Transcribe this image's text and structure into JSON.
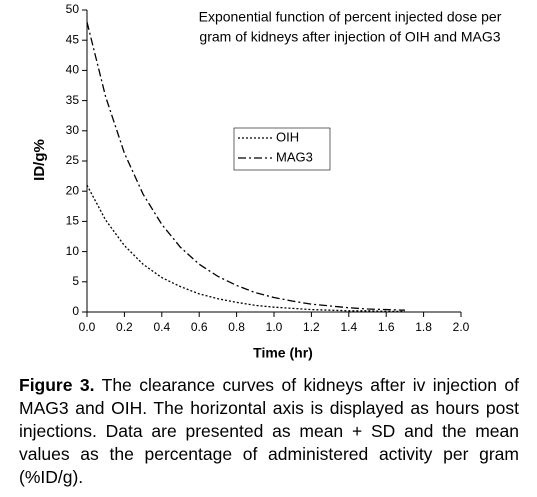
{
  "chart_data": {
    "type": "line",
    "title": [
      "Exponential function of percent injected dose per",
      "gram of kidneys after injection of OIH and MAG3"
    ],
    "x_label": "Time (hr)",
    "y_label": "ID/g%",
    "x": [
      0,
      0.1,
      0.2,
      0.3,
      0.4,
      0.5,
      0.6,
      0.7,
      0.8,
      0.9,
      1.0,
      1.1,
      1.2,
      1.3,
      1.4,
      1.5,
      1.6,
      1.7
    ],
    "series": [
      {
        "name": "OIH",
        "color": "#000000",
        "style": "dotted",
        "values": [
          21,
          15.2,
          11.0,
          7.9,
          5.7,
          4.2,
          3.0,
          2.2,
          1.6,
          1.1,
          0.8,
          0.6,
          0.4,
          0.3,
          0.2,
          0.2,
          0.1,
          0.1
        ]
      },
      {
        "name": "MAG3",
        "color": "#000000",
        "style": "dashdot",
        "values": [
          48,
          35.6,
          26.3,
          19.5,
          14.5,
          10.7,
          7.9,
          5.9,
          4.4,
          3.2,
          2.4,
          1.8,
          1.3,
          1.0,
          0.7,
          0.5,
          0.4,
          0.3
        ]
      }
    ],
    "xlim": [
      0,
      2
    ],
    "xticks": [
      {
        "value": 0,
        "label": "0.0"
      },
      0.2,
      0.4,
      0.6,
      0.8,
      {
        "value": 1,
        "label": "1.0"
      },
      1.2,
      1.4,
      1.6,
      1.8,
      {
        "value": 2,
        "label": "2.0"
      }
    ],
    "ylim": [
      0,
      50
    ],
    "yticks": [
      0,
      5,
      10,
      15,
      20,
      25,
      30,
      35,
      40,
      45,
      50
    ],
    "grid": false,
    "legend": "center"
  },
  "caption": {
    "label": "Figure 3.",
    "text": "The clearance curves of kidneys after iv injection of MAG3 and OIH. The horizontal axis is displayed as hours post injections. Data are presented as mean + SD and the mean values as the percentage of administered activity per gram (%ID/g)."
  }
}
